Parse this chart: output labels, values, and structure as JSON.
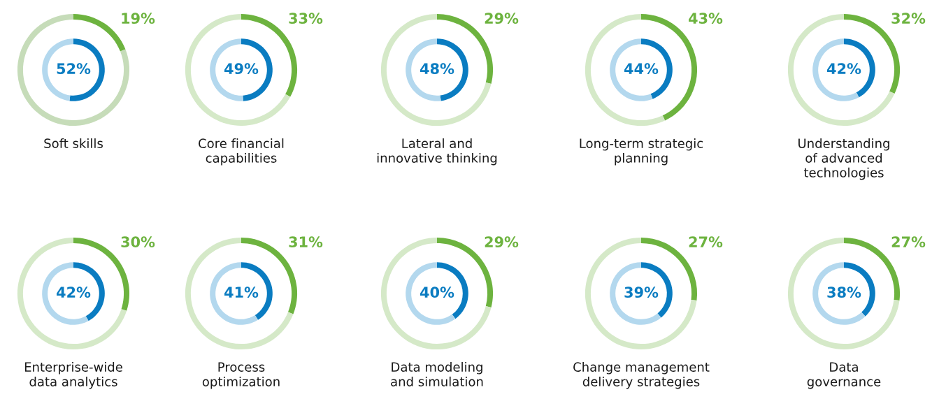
{
  "chart_data": [
    {
      "type": "donut",
      "title": "Soft skills",
      "categories": [
        null,
        null
      ],
      "series": [
        {
          "values": [
            19,
            81
          ],
          "colors": [
            "#6db33f",
            "#c6dcb9"
          ],
          "value_labels": [
            "19%",
            null
          ]
        },
        {
          "values": [
            52,
            48
          ],
          "colors": [
            "#0a7cc1",
            "#b3d8ee"
          ],
          "value_labels": [
            "52%",
            null
          ]
        }
      ]
    },
    {
      "type": "donut",
      "title": "Core financial\ncapabilities",
      "categories": [
        null,
        null
      ],
      "series": [
        {
          "values": [
            33,
            67
          ],
          "colors": [
            "#6db33f",
            "#d5e9c8"
          ],
          "value_labels": [
            "33%",
            null
          ]
        },
        {
          "values": [
            49,
            51
          ],
          "colors": [
            "#0a7cc1",
            "#b3d8ee"
          ],
          "value_labels": [
            "49%",
            null
          ]
        }
      ]
    },
    {
      "type": "donut",
      "title": "Lateral and\ninnovative thinking",
      "categories": [
        null,
        null
      ],
      "series": [
        {
          "values": [
            29,
            71
          ],
          "colors": [
            "#6db33f",
            "#d5e9c8"
          ],
          "value_labels": [
            "29%",
            null
          ]
        },
        {
          "values": [
            48,
            52
          ],
          "colors": [
            "#0a7cc1",
            "#b3d8ee"
          ],
          "value_labels": [
            "48%",
            null
          ]
        }
      ]
    },
    {
      "type": "donut",
      "title": "Long-term strategic\nplanning",
      "categories": [
        null,
        null
      ],
      "series": [
        {
          "values": [
            43,
            57
          ],
          "colors": [
            "#6db33f",
            "#d5e9c8"
          ],
          "value_labels": [
            "43%",
            null
          ]
        },
        {
          "values": [
            44,
            56
          ],
          "colors": [
            "#0a7cc1",
            "#b3d8ee"
          ],
          "value_labels": [
            "44%",
            null
          ]
        }
      ]
    },
    {
      "type": "donut",
      "title": "Understanding\nof advanced\ntechnologies",
      "categories": [
        null,
        null
      ],
      "series": [
        {
          "values": [
            32,
            68
          ],
          "colors": [
            "#6db33f",
            "#d5e9c8"
          ],
          "value_labels": [
            "32%",
            null
          ]
        },
        {
          "values": [
            42,
            58
          ],
          "colors": [
            "#0a7cc1",
            "#b3d8ee"
          ],
          "value_labels": [
            "42%",
            null
          ]
        }
      ]
    },
    {
      "type": "donut",
      "title": "Enterprise-wide\ndata analytics",
      "categories": [
        null,
        null
      ],
      "series": [
        {
          "values": [
            30,
            70
          ],
          "colors": [
            "#6db33f",
            "#d5e9c8"
          ],
          "value_labels": [
            "30%",
            null
          ]
        },
        {
          "values": [
            42,
            58
          ],
          "colors": [
            "#0a7cc1",
            "#b3d8ee"
          ],
          "value_labels": [
            "42%",
            null
          ]
        }
      ]
    },
    {
      "type": "donut",
      "title": "Process\noptimization",
      "categories": [
        null,
        null
      ],
      "series": [
        {
          "values": [
            31,
            69
          ],
          "colors": [
            "#6db33f",
            "#d5e9c8"
          ],
          "value_labels": [
            "31%",
            null
          ]
        },
        {
          "values": [
            41,
            59
          ],
          "colors": [
            "#0a7cc1",
            "#b3d8ee"
          ],
          "value_labels": [
            "41%",
            null
          ]
        }
      ]
    },
    {
      "type": "donut",
      "title": "Data modeling\nand simulation",
      "categories": [
        null,
        null
      ],
      "series": [
        {
          "values": [
            29,
            71
          ],
          "colors": [
            "#6db33f",
            "#d5e9c8"
          ],
          "value_labels": [
            "29%",
            null
          ]
        },
        {
          "values": [
            40,
            60
          ],
          "colors": [
            "#0a7cc1",
            "#b3d8ee"
          ],
          "value_labels": [
            "40%",
            null
          ]
        }
      ]
    },
    {
      "type": "donut",
      "title": "Change management\ndelivery strategies",
      "categories": [
        null,
        null
      ],
      "series": [
        {
          "values": [
            27,
            73
          ],
          "colors": [
            "#6db33f",
            "#d5e9c8"
          ],
          "value_labels": [
            "27%",
            null
          ]
        },
        {
          "values": [
            39,
            61
          ],
          "colors": [
            "#0a7cc1",
            "#b3d8ee"
          ],
          "value_labels": [
            "39%",
            null
          ]
        }
      ]
    },
    {
      "type": "donut",
      "title": "Data\ngovernance",
      "categories": [
        null,
        null
      ],
      "series": [
        {
          "values": [
            27,
            73
          ],
          "colors": [
            "#6db33f",
            "#d5e9c8"
          ],
          "value_labels": [
            "27%",
            null
          ]
        },
        {
          "values": [
            38,
            62
          ],
          "colors": [
            "#0a7cc1",
            "#b3d8ee"
          ],
          "value_labels": [
            "38%",
            null
          ]
        }
      ]
    }
  ]
}
